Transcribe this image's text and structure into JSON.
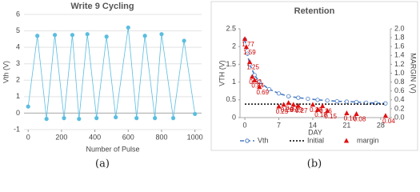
{
  "chart_data": [
    {
      "type": "line",
      "title": "Write 9 Cycling",
      "caption": "(a)",
      "x_label": "Number of Pulse",
      "y_label": "Vth (V)",
      "x": [
        0,
        55,
        110,
        160,
        215,
        265,
        305,
        355,
        410,
        470,
        525,
        600,
        650,
        700,
        760,
        800,
        870,
        935,
        1000
      ],
      "values": [
        0.4,
        4.7,
        -0.35,
        4.75,
        -0.3,
        4.75,
        -0.35,
        4.8,
        -0.3,
        4.65,
        -0.25,
        5.2,
        -0.3,
        4.7,
        -0.3,
        4.8,
        -0.3,
        4.4,
        -0.05
      ],
      "color": "#5bbde0",
      "xlim": [
        -25,
        1040
      ],
      "xticks": [
        0,
        200,
        400,
        600,
        800,
        1000
      ],
      "ylim": [
        -1,
        6
      ],
      "yticks": [
        -1,
        0,
        1,
        2,
        3,
        4,
        5,
        6
      ],
      "grid": true
    },
    {
      "type": "line",
      "title": "Retention",
      "caption": "(b)",
      "x_label": "DAY",
      "y_label": "VTH (V)",
      "y2_label": "MARGIN (V)",
      "xlim": [
        -1,
        30
      ],
      "xticks": [
        0,
        7,
        14,
        21,
        28
      ],
      "ylim": [
        0,
        2.5
      ],
      "yticks": [
        0,
        0.5,
        1,
        1.5,
        2,
        2.5
      ],
      "y2lim": [
        0,
        2
      ],
      "y2ticks": [
        {
          "value": 0,
          "label": "0.0"
        },
        0.2,
        0.4,
        0.6,
        0.8,
        {
          "value": 1,
          "label": "1.0"
        },
        1.2,
        1.4,
        1.6,
        1.8,
        {
          "value": 2,
          "label": "2.0"
        }
      ],
      "grid": false,
      "legend": "bottom",
      "series": [
        {
          "name": "Vth",
          "color": "#4a7cc4",
          "line": "dashed",
          "marker": "circle",
          "x": [
            0,
            0.5,
            1,
            2,
            3,
            5,
            7,
            9,
            11,
            13,
            15,
            17,
            19,
            21,
            23,
            25,
            27,
            29
          ],
          "values": [
            2.2,
            1.8,
            1.5,
            1.2,
            1.0,
            0.8,
            0.68,
            0.6,
            0.56,
            0.53,
            0.5,
            0.48,
            0.46,
            0.45,
            0.44,
            0.42,
            0.41,
            0.4
          ]
        },
        {
          "name": "Initial",
          "color": "#000000",
          "line": "dotted",
          "marker": "none",
          "x": [
            0,
            29
          ],
          "values": [
            0.38,
            0.38
          ]
        },
        {
          "name": "margin",
          "color": "#e01010",
          "line": "none",
          "marker": "triangle",
          "axis": "y2",
          "x": [
            0,
            0.3,
            1,
            1.5,
            2,
            3,
            7,
            8,
            9,
            10,
            11,
            14,
            15,
            16,
            17,
            21,
            23,
            29
          ],
          "values": [
            1.77,
            1.59,
            1.25,
            0.92,
            0.84,
            0.69,
            0.25,
            0.29,
            0.33,
            0.29,
            0.27,
            0.29,
            0.18,
            0.26,
            0.15,
            0.1,
            0.08,
            0.04
          ],
          "value_labels": [
            "1.77",
            "1.59",
            "1.25",
            "0.92",
            "0.84",
            "0.69",
            "0.25",
            "0.29",
            "0.33",
            "0.29",
            "0.27",
            "0.29",
            "0.18",
            "0.26",
            "0.15",
            "0.10",
            "0.08",
            "0.04"
          ]
        }
      ]
    }
  ]
}
